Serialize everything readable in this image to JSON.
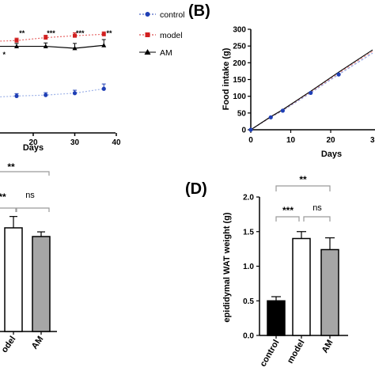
{
  "panels": {
    "b": "(B)",
    "d": "(D)"
  },
  "colors": {
    "control": "#1f3fb5",
    "model": "#d11f1f",
    "am": "#000000",
    "bar_control": "#000000",
    "bar_model": "#ffffff",
    "bar_am": "#a6a6a6",
    "bracket": "#9a9a9a",
    "model_line": "#e86a6a",
    "control_line": "#9fb3e8"
  },
  "chart_data": [
    {
      "id": "A",
      "type": "line",
      "xlabel": "Days",
      "xlim": [
        0,
        40
      ],
      "xticks": [
        20,
        30,
        40
      ],
      "series": [
        {
          "name": "control",
          "x": [
            9,
            16,
            23,
            30,
            37
          ],
          "y": [
            33.8,
            34.1,
            34.3,
            34.7,
            35.6
          ],
          "err": [
            0.0,
            0.5,
            0.5,
            0.6,
            1.0
          ]
        },
        {
          "name": "model",
          "x": [
            9,
            16,
            23,
            30,
            37
          ],
          "y": [
            45.4,
            45.6,
            46.2,
            46.6,
            46.9
          ],
          "err": [
            0.0,
            0.5,
            0.5,
            0.6,
            0.5
          ]
        },
        {
          "name": "AM",
          "x": [
            9,
            16,
            23,
            30,
            37
          ],
          "y": [
            44.4,
            44.4,
            44.4,
            44.0,
            44.6
          ],
          "err": [
            0.0,
            0.6,
            0.7,
            1.0,
            1.2
          ]
        }
      ],
      "annotations": [
        {
          "x": 16,
          "text": "**"
        },
        {
          "x": 23,
          "text": "**"
        },
        {
          "x": 30,
          "text": "***"
        },
        {
          "x": 37,
          "text": "***"
        },
        {
          "x": 44,
          "text": "**"
        }
      ],
      "small_annotation": {
        "x": 13,
        "text": "*"
      }
    },
    {
      "id": "B",
      "type": "line",
      "ylabel": "Food intake (g)",
      "xlabel": "Days",
      "ylim": [
        0,
        300
      ],
      "yticks": [
        0,
        50,
        100,
        150,
        200,
        250,
        300
      ],
      "xlim": [
        0,
        30
      ],
      "xticks": [
        0,
        10,
        20
      ],
      "xtick_partial": "3",
      "series": [
        {
          "name": "control",
          "x": [
            0,
            5,
            8,
            15,
            22
          ],
          "y": [
            0,
            37,
            57,
            110,
            165
          ]
        },
        {
          "name": "model",
          "x": [
            0,
            5,
            8,
            15,
            22
          ],
          "y": [
            0,
            38,
            59,
            113,
            169
          ]
        },
        {
          "name": "AM",
          "x": [
            0,
            5,
            8,
            15,
            22
          ],
          "y": [
            0,
            39,
            60,
            115,
            172
          ]
        }
      ]
    },
    {
      "id": "C",
      "type": "bar",
      "categories": [
        "model",
        "AM"
      ],
      "category_labels": [
        "odel",
        "AM"
      ],
      "values": [
        1.55,
        1.42
      ],
      "errors": [
        0.17,
        0.07
      ],
      "brackets": [
        "**",
        "**",
        "ns"
      ]
    },
    {
      "id": "D",
      "type": "bar",
      "ylabel": "epididymal WAT weight (g)",
      "ylim": [
        0,
        2.0
      ],
      "yticks": [
        "0.0",
        "0.5",
        "1.0",
        "1.5",
        "2.0"
      ],
      "categories": [
        "control",
        "model",
        "AM"
      ],
      "values": [
        0.5,
        1.4,
        1.24
      ],
      "errors": [
        0.06,
        0.1,
        0.17
      ],
      "brackets": [
        {
          "from": 1,
          "to": 3,
          "text": "**"
        },
        {
          "from": 1,
          "to": 2,
          "text": "***"
        },
        {
          "from": 2,
          "to": 3,
          "text": "ns"
        }
      ]
    }
  ]
}
